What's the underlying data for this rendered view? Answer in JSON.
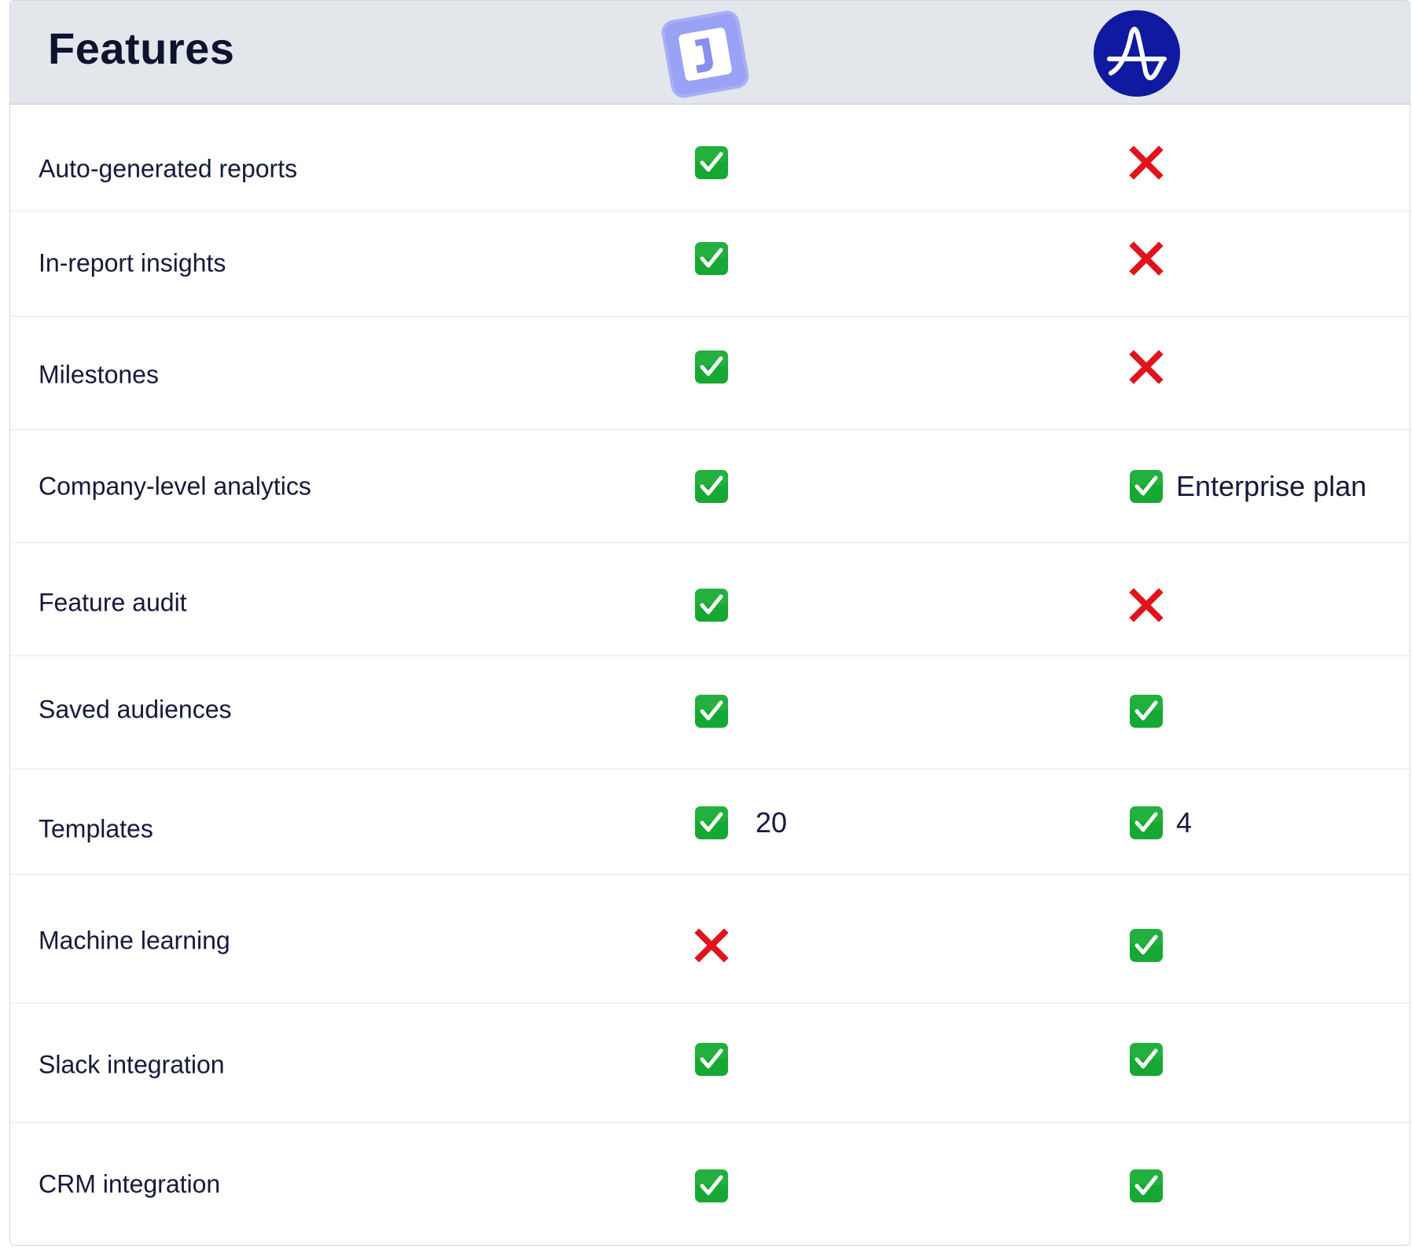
{
  "header": {
    "title": "Features",
    "product_a_logo": "j-logo-icon",
    "product_b_logo": "amplitude-logo-icon"
  },
  "colors": {
    "header_bg": "#e3e7eb",
    "check_green": "#16a833",
    "cross_red": "#e0141c",
    "logo_a_bg": "#9aa2f5",
    "logo_b_bg": "#101aa0",
    "text": "#15193a"
  },
  "rows": [
    {
      "feature": "Auto-generated reports",
      "a": "check",
      "a_note": "",
      "b": "cross",
      "b_note": ""
    },
    {
      "feature": "In-report insights",
      "a": "check",
      "a_note": "",
      "b": "cross",
      "b_note": ""
    },
    {
      "feature": "Milestones",
      "a": "check",
      "a_note": "",
      "b": "cross",
      "b_note": ""
    },
    {
      "feature": "Company-level analytics",
      "a": "check",
      "a_note": "",
      "b": "check",
      "b_note": "Enterprise plan"
    },
    {
      "feature": "Feature audit",
      "a": "check",
      "a_note": "",
      "b": "cross",
      "b_note": ""
    },
    {
      "feature": "Saved audiences",
      "a": "check",
      "a_note": "",
      "b": "check",
      "b_note": ""
    },
    {
      "feature": "Templates",
      "a": "check",
      "a_note": "20",
      "b": "check",
      "b_note": "4"
    },
    {
      "feature": "Machine learning",
      "a": "cross",
      "a_note": "",
      "b": "check",
      "b_note": ""
    },
    {
      "feature": "Slack integration",
      "a": "check",
      "a_note": "",
      "b": "check",
      "b_note": ""
    },
    {
      "feature": "CRM integration",
      "a": "check",
      "a_note": "",
      "b": "check",
      "b_note": ""
    }
  ]
}
